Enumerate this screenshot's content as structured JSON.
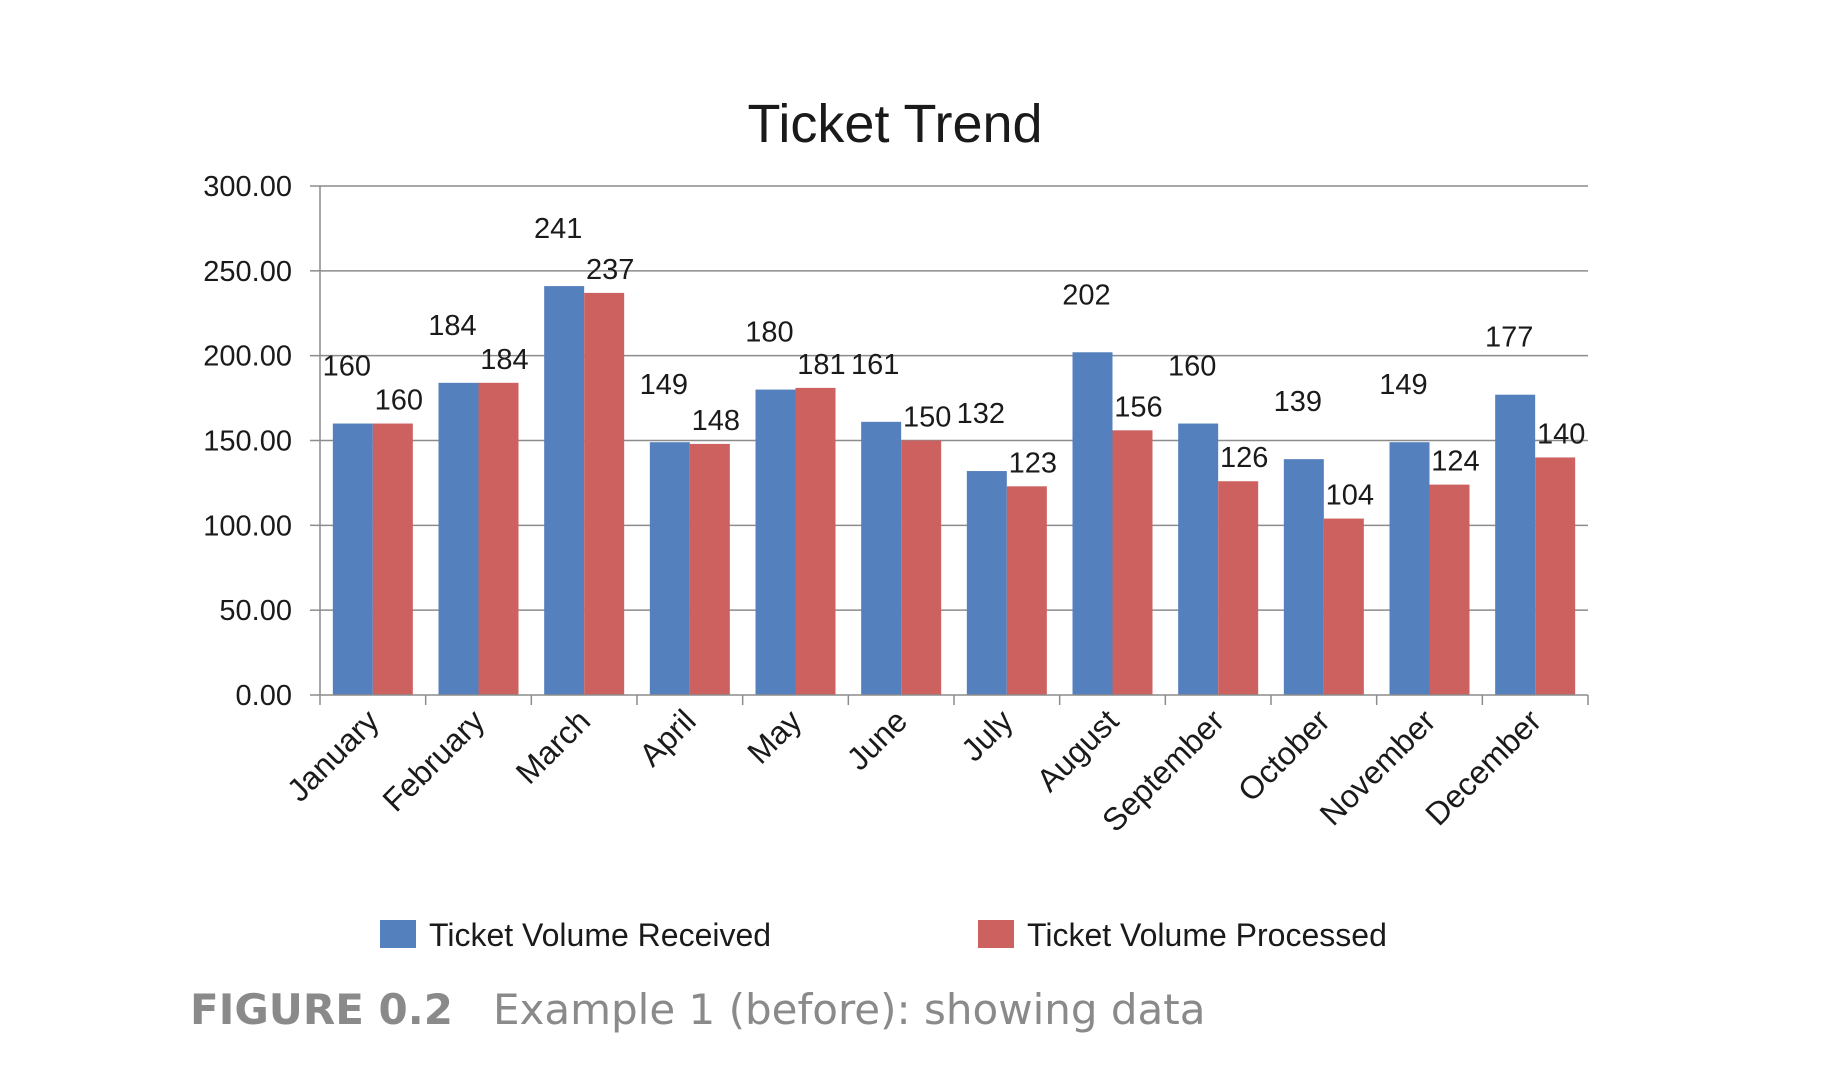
{
  "chart_data": {
    "type": "bar",
    "title": "Ticket Trend",
    "categories": [
      "January",
      "February",
      "March",
      "April",
      "May",
      "June",
      "July",
      "August",
      "September",
      "October",
      "November",
      "December"
    ],
    "series": [
      {
        "name": "Ticket Volume Received",
        "values": [
          160,
          184,
          241,
          149,
          180,
          161,
          132,
          202,
          160,
          139,
          149,
          177
        ]
      },
      {
        "name": "Ticket Volume Processed",
        "values": [
          160,
          184,
          237,
          148,
          181,
          150,
          123,
          156,
          126,
          104,
          124,
          140
        ]
      }
    ],
    "ylim": [
      0,
      300
    ],
    "yticks": [
      "0.00",
      "50.00",
      "100.00",
      "150.00",
      "200.00",
      "250.00",
      "300.00"
    ],
    "grid": true,
    "legend_position": "bottom",
    "colors": {
      "received": "#5580be",
      "processed": "#cd615f",
      "grid": "#8c8c8c",
      "text": "#1a1a1a"
    }
  },
  "caption": {
    "label": "FIGURE 0.2",
    "text": "Example 1 (before): showing data"
  }
}
